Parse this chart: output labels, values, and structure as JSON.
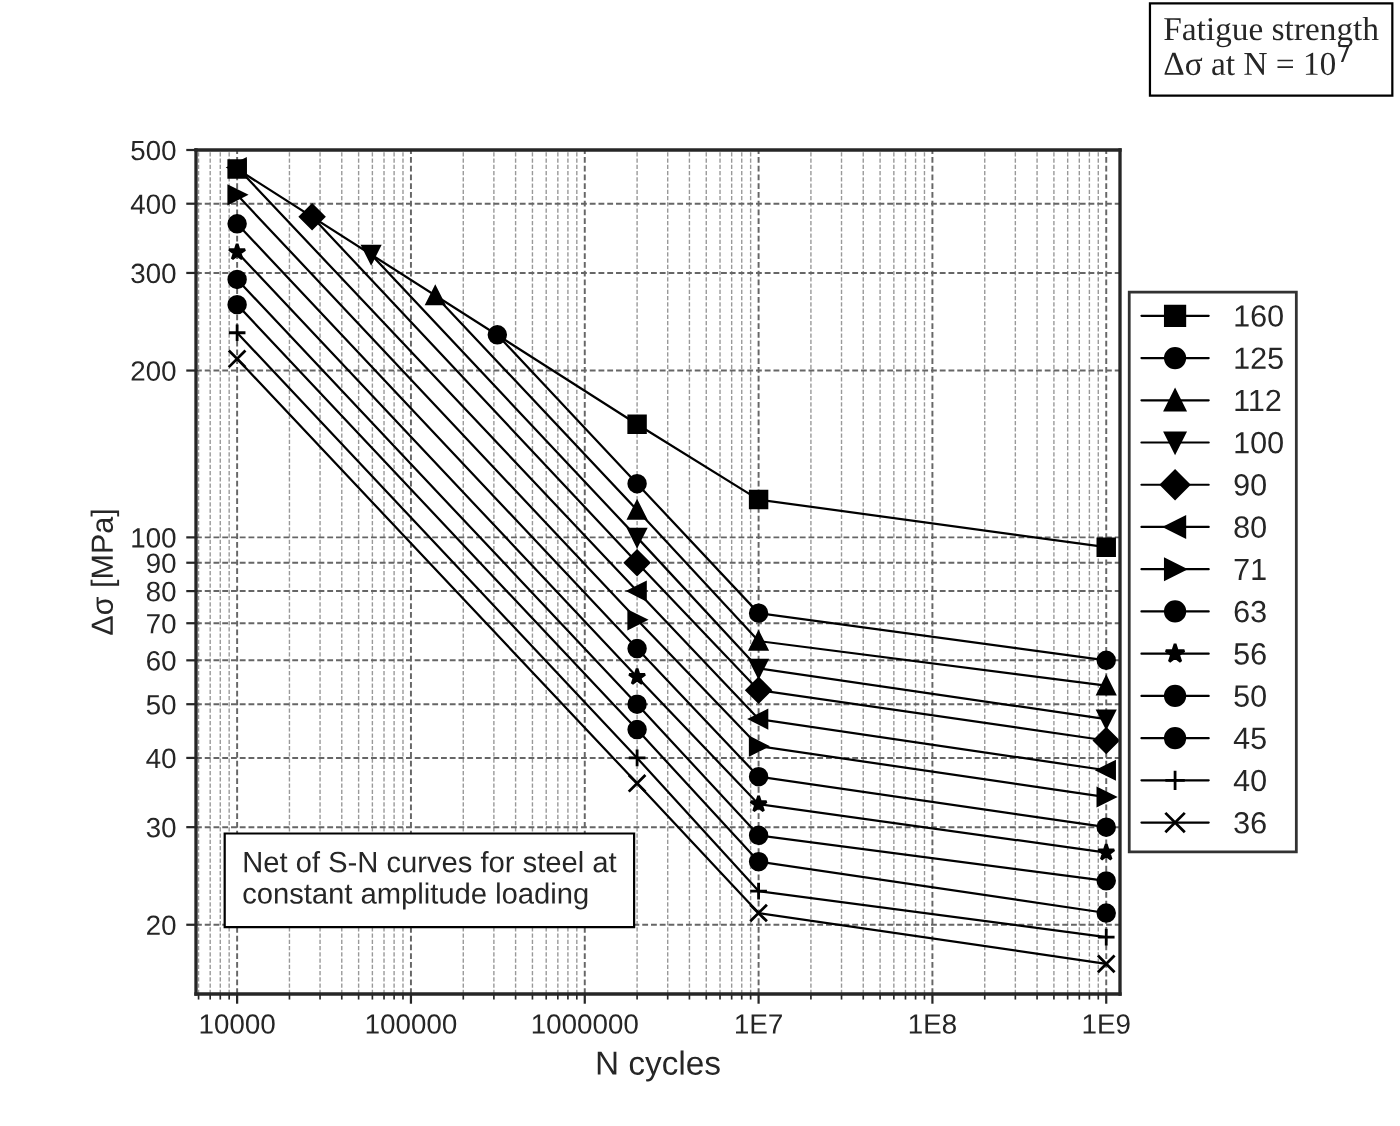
{
  "chart_data": {
    "type": "line",
    "xlabel": "N cycles",
    "ylabel": "Δσ [MPa]",
    "legend_title": "Fatigue strength\nΔσ at N = 10$^{7}$",
    "log": "xy",
    "grid": true,
    "legend": "right",
    "line_style": "solid",
    "xlim": [
      5800,
      1200000000
    ],
    "ylim": [
      15,
      500
    ],
    "xticks": [
      10000,
      100000,
      1000000,
      {
        "value": 10000000,
        "label": "1E7"
      },
      {
        "value": 100000000,
        "label": "1E8"
      },
      {
        "value": 1000000000,
        "label": "1E9"
      }
    ],
    "yticks": [
      20,
      30,
      40,
      50,
      60,
      70,
      80,
      90,
      100,
      200,
      300,
      400,
      500
    ],
    "annotations": [
      "Net of S-N curves for steel at\nconstant amplitude loading"
    ],
    "series": [
      {
        "name": "160",
        "color": "#000000",
        "marker": "square",
        "x": [
          10000,
          2000000,
          10000000,
          1000000000
        ],
        "values": [
          462,
          160,
          117,
          96
        ]
      },
      {
        "name": "125",
        "color": "#000000",
        "marker": "circle",
        "x": [
          314000,
          2000000,
          10000000,
          1000000000
        ],
        "values": [
          232,
          125,
          73,
          60
        ]
      },
      {
        "name": "112",
        "color": "#000000",
        "marker": "triangle",
        "x": [
          138000,
          2000000,
          10000000,
          1000000000
        ],
        "values": [
          273,
          112,
          65,
          54
        ]
      },
      {
        "name": "100",
        "color": "#000000",
        "marker": "triangle-down",
        "x": [
          59000,
          2000000,
          10000000,
          1000000000
        ],
        "values": [
          324,
          100,
          58,
          47
        ]
      },
      {
        "name": "90",
        "color": "#000000",
        "marker": "diamond",
        "x": [
          27000,
          2000000,
          10000000,
          1000000000
        ],
        "values": [
          379,
          90,
          53,
          43
        ]
      },
      {
        "name": "80",
        "color": "#000000",
        "marker": "triangle-left",
        "x": [
          10000,
          2000000,
          10000000,
          1000000000
        ],
        "values": [
          465,
          80,
          47,
          38
        ]
      },
      {
        "name": "71",
        "color": "#000000",
        "marker": "triangle-right",
        "x": [
          10000,
          2000000,
          10000000,
          1000000000
        ],
        "values": [
          415,
          71,
          42,
          34
        ]
      },
      {
        "name": "63",
        "color": "#000000",
        "marker": "circle",
        "x": [
          10000,
          2000000,
          10000000,
          1000000000
        ],
        "values": [
          368,
          63,
          37,
          30
        ]
      },
      {
        "name": "56",
        "color": "#000000",
        "marker": "star",
        "x": [
          10000,
          2000000,
          10000000,
          1000000000
        ],
        "values": [
          327,
          56,
          33,
          27
        ]
      },
      {
        "name": "50",
        "color": "#000000",
        "marker": "circle",
        "x": [
          10000,
          2000000,
          10000000,
          1000000000
        ],
        "values": [
          292,
          50,
          29,
          24
        ]
      },
      {
        "name": "45",
        "color": "#000000",
        "marker": "circle",
        "x": [
          10000,
          2000000,
          10000000,
          1000000000
        ],
        "values": [
          263,
          45,
          26,
          21
        ]
      },
      {
        "name": "40",
        "color": "#000000",
        "marker": "plus",
        "x": [
          10000,
          2000000,
          10000000,
          1000000000
        ],
        "values": [
          234,
          40,
          23,
          19
        ]
      },
      {
        "name": "36",
        "color": "#000000",
        "marker": "cross",
        "x": [
          10000,
          2000000,
          10000000,
          1000000000
        ],
        "values": [
          210,
          36,
          21,
          17
        ]
      }
    ]
  }
}
